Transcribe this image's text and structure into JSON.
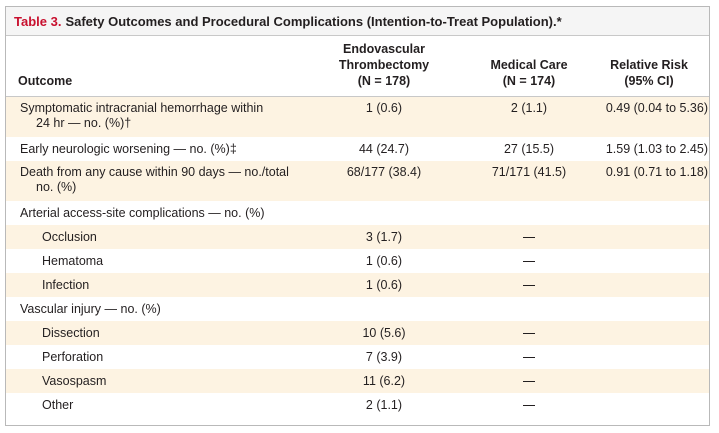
{
  "table": {
    "label": "Table 3.",
    "title": "Safety Outcomes and Procedural Complications (Intention-to-Treat Population).*",
    "headers": {
      "outcome": "Outcome",
      "endovascular": [
        "Endovascular",
        "Thrombectomy",
        "(N = 178)"
      ],
      "medical": [
        "Medical Care",
        "(N = 174)"
      ],
      "relative_risk": [
        "Relative Risk",
        "(95% CI)"
      ]
    },
    "rows": [
      {
        "outcome_line1": "Symptomatic intracranial hemorrhage within",
        "outcome_line2": "24 hr — no. (%)†",
        "endo": "1 (0.6)",
        "med": "2 (1.1)",
        "rr": "0.49 (0.04 to 5.36)"
      },
      {
        "outcome_line1": "Early neurologic worsening — no. (%)‡",
        "endo": "44 (24.7)",
        "med": "27 (15.5)",
        "rr": "1.59 (1.03 to 2.45)"
      },
      {
        "outcome_line1": "Death from any cause within 90 days — no./total",
        "outcome_line2": "no. (%)",
        "endo": "68/177 (38.4)",
        "med": "71/171 (41.5)",
        "rr": "0.91 (0.71 to 1.18)"
      },
      {
        "outcome_line1": "Arterial access-site complications — no. (%)"
      },
      {
        "outcome_line1": "Occlusion",
        "endo": "3 (1.7)",
        "med_dash": true
      },
      {
        "outcome_line1": "Hematoma",
        "endo": "1 (0.6)",
        "med_dash": true
      },
      {
        "outcome_line1": "Infection",
        "endo": "1 (0.6)",
        "med_dash": true
      },
      {
        "outcome_line1": "Vascular injury — no. (%)"
      },
      {
        "outcome_line1": "Dissection",
        "endo": "10 (5.6)",
        "med_dash": true
      },
      {
        "outcome_line1": "Perforation",
        "endo": "7 (3.9)",
        "med_dash": true
      },
      {
        "outcome_line1": "Vasospasm",
        "endo": "11 (6.2)",
        "med_dash": true
      },
      {
        "outcome_line1": "Other",
        "endo": "2 (1.1)",
        "med_dash": true
      }
    ]
  }
}
